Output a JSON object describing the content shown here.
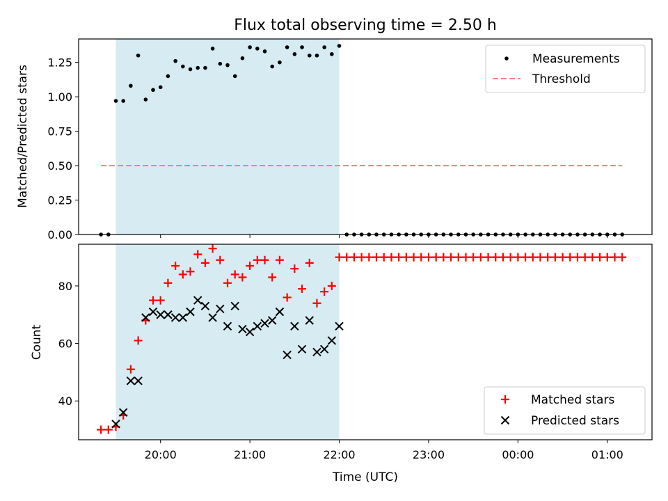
{
  "title": "Flux total observing time = 2.50 h",
  "chart_data": [
    {
      "type": "scatter",
      "panel": "top",
      "title": "Flux total observing time = 2.50 h",
      "xlabel": "",
      "ylabel": "Matched/Predicted stars",
      "ylim": [
        0.0,
        1.42
      ],
      "yticks": [
        0.0,
        0.25,
        0.5,
        0.75,
        1.0,
        1.25
      ],
      "ytick_labels": [
        "0.00",
        "0.25",
        "0.50",
        "0.75",
        "1.00",
        "1.25"
      ],
      "legend_position": "top-right",
      "shaded_interval": {
        "start": "19:30",
        "end": "22:00"
      },
      "series": [
        {
          "name": "Measurements",
          "marker": "dot",
          "color": "#000000",
          "x": [
            "19:20",
            "19:25",
            "19:30",
            "19:35",
            "19:40",
            "19:45",
            "19:50",
            "19:55",
            "20:00",
            "20:05",
            "20:10",
            "20:15",
            "20:20",
            "20:25",
            "20:30",
            "20:35",
            "20:40",
            "20:45",
            "20:50",
            "20:55",
            "21:00",
            "21:05",
            "21:10",
            "21:15",
            "21:20",
            "21:25",
            "21:30",
            "21:35",
            "21:40",
            "21:45",
            "21:50",
            "21:55",
            "22:00",
            "22:05",
            "22:10",
            "22:15",
            "22:20",
            "22:25",
            "22:30",
            "22:35",
            "22:40",
            "22:45",
            "22:50",
            "22:55",
            "23:00",
            "23:05",
            "23:10",
            "23:15",
            "23:20",
            "23:25",
            "23:30",
            "23:35",
            "23:40",
            "23:45",
            "23:50",
            "23:55",
            "00:00",
            "00:05",
            "00:10",
            "00:15",
            "00:20",
            "00:25",
            "00:30",
            "00:35",
            "00:40",
            "00:45",
            "00:50",
            "00:55",
            "01:00",
            "01:05",
            "01:10"
          ],
          "y": [
            0.0,
            0.0,
            0.97,
            0.97,
            1.08,
            1.3,
            0.98,
            1.05,
            1.07,
            1.15,
            1.26,
            1.22,
            1.2,
            1.21,
            1.21,
            1.35,
            1.24,
            1.23,
            1.15,
            1.28,
            1.36,
            1.35,
            1.33,
            1.22,
            1.25,
            1.36,
            1.31,
            1.36,
            1.3,
            1.3,
            1.36,
            1.31,
            1.37,
            0.0,
            0.0,
            0.0,
            0.0,
            0.0,
            0.0,
            0.0,
            0.0,
            0.0,
            0.0,
            0.0,
            0.0,
            0.0,
            0.0,
            0.0,
            0.0,
            0.0,
            0.0,
            0.0,
            0.0,
            0.0,
            0.0,
            0.0,
            0.0,
            0.0,
            0.0,
            0.0,
            0.0,
            0.0,
            0.0,
            0.0,
            0.0,
            0.0,
            0.0,
            0.0,
            0.0,
            0.0,
            0.0
          ]
        },
        {
          "name": "Threshold",
          "line_style": "dashed",
          "color": "#ff7f7f",
          "x": [
            "19:20",
            "01:10"
          ],
          "y": [
            0.5,
            0.5
          ]
        }
      ]
    },
    {
      "type": "scatter",
      "panel": "bottom",
      "xlabel": "Time (UTC)",
      "ylabel": "Count",
      "ylim": [
        26.5,
        94.5
      ],
      "yticks": [
        40,
        60,
        80
      ],
      "ytick_labels": [
        "40",
        "60",
        "80"
      ],
      "xticks": [
        "20:00",
        "21:00",
        "22:00",
        "23:00",
        "00:00",
        "01:00"
      ],
      "xtick_labels": [
        "20:00",
        "21:00",
        "22:00",
        "23:00",
        "00:00",
        "01:00"
      ],
      "xlim": [
        "19:05",
        "01:30"
      ],
      "legend_position": "bottom-right",
      "shaded_interval": {
        "start": "19:30",
        "end": "22:00"
      },
      "series": [
        {
          "name": "Matched stars",
          "marker": "plus",
          "color": "#ff0000",
          "x": [
            "19:20",
            "19:25",
            "19:30",
            "19:35",
            "19:40",
            "19:45",
            "19:50",
            "19:55",
            "20:00",
            "20:05",
            "20:10",
            "20:15",
            "20:20",
            "20:25",
            "20:30",
            "20:35",
            "20:40",
            "20:45",
            "20:50",
            "20:55",
            "21:00",
            "21:05",
            "21:10",
            "21:15",
            "21:20",
            "21:25",
            "21:30",
            "21:35",
            "21:40",
            "21:45",
            "21:50",
            "21:55",
            "22:00",
            "22:05",
            "22:10",
            "22:15",
            "22:20",
            "22:25",
            "22:30",
            "22:35",
            "22:40",
            "22:45",
            "22:50",
            "22:55",
            "23:00",
            "23:05",
            "23:10",
            "23:15",
            "23:20",
            "23:25",
            "23:30",
            "23:35",
            "23:40",
            "23:45",
            "23:50",
            "23:55",
            "00:00",
            "00:05",
            "00:10",
            "00:15",
            "00:20",
            "00:25",
            "00:30",
            "00:35",
            "00:40",
            "00:45",
            "00:50",
            "00:55",
            "01:00",
            "01:05",
            "01:10"
          ],
          "y": [
            30,
            30,
            31,
            35,
            51,
            61,
            68,
            75,
            75,
            81,
            87,
            84,
            85,
            91,
            88,
            93,
            89,
            81,
            84,
            83,
            87,
            89,
            89,
            83,
            89,
            76,
            86,
            79,
            88,
            74,
            78,
            80,
            90,
            90,
            90,
            90,
            90,
            90,
            90,
            90,
            90,
            90,
            90,
            90,
            90,
            90,
            90,
            90,
            90,
            90,
            90,
            90,
            90,
            90,
            90,
            90,
            90,
            90,
            90,
            90,
            90,
            90,
            90,
            90,
            90,
            90,
            90,
            90,
            90,
            90,
            90
          ]
        },
        {
          "name": "Predicted stars",
          "marker": "x",
          "color": "#000000",
          "x": [
            "19:30",
            "19:35",
            "19:40",
            "19:45",
            "19:50",
            "19:55",
            "20:00",
            "20:05",
            "20:10",
            "20:15",
            "20:20",
            "20:25",
            "20:30",
            "20:35",
            "20:40",
            "20:45",
            "20:50",
            "20:55",
            "21:00",
            "21:05",
            "21:10",
            "21:15",
            "21:20",
            "21:25",
            "21:30",
            "21:35",
            "21:40",
            "21:45",
            "21:50",
            "21:55",
            "22:00"
          ],
          "y": [
            32,
            36,
            47,
            47,
            69,
            71,
            70,
            70,
            69,
            69,
            71,
            75,
            73,
            69,
            72,
            66,
            73,
            65,
            64,
            66,
            67,
            68,
            71,
            56,
            66,
            58,
            68,
            57,
            58,
            61,
            66
          ]
        }
      ]
    }
  ]
}
